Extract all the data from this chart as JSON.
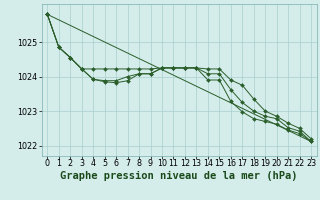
{
  "title": "Graphe pression niveau de la mer (hPa)",
  "background_color": "#d4ecea",
  "grid_color": "#a8d0ce",
  "line_color": "#2a5e2a",
  "x": [
    0,
    1,
    2,
    3,
    4,
    5,
    6,
    7,
    8,
    9,
    10,
    11,
    12,
    13,
    14,
    15,
    16,
    17,
    18,
    19,
    20,
    21,
    22,
    23
  ],
  "line_upper": [
    1025.8,
    1024.85,
    1024.55,
    1024.22,
    1024.22,
    1024.22,
    1024.22,
    1024.22,
    1024.22,
    1024.22,
    1024.25,
    1024.25,
    1024.25,
    1024.25,
    1024.22,
    1024.22,
    1023.9,
    1023.75,
    1023.35,
    1023.0,
    1022.85,
    1022.65,
    1022.5,
    1022.2
  ],
  "line_mid": [
    1025.8,
    1024.85,
    1024.55,
    1024.22,
    1023.92,
    1023.88,
    1023.88,
    1024.0,
    1024.08,
    1024.08,
    1024.25,
    1024.25,
    1024.25,
    1024.25,
    1024.08,
    1024.08,
    1023.62,
    1023.25,
    1023.0,
    1022.85,
    1022.78,
    1022.52,
    1022.42,
    1022.12
  ],
  "line_lower": [
    1025.8,
    1024.85,
    1024.55,
    1024.22,
    1023.92,
    1023.85,
    1023.82,
    1023.88,
    1024.08,
    1024.08,
    1024.25,
    1024.25,
    1024.25,
    1024.25,
    1023.9,
    1023.9,
    1023.28,
    1022.98,
    1022.78,
    1022.7,
    1022.62,
    1022.45,
    1022.35,
    1022.12
  ],
  "trend_x": [
    0,
    23
  ],
  "trend_y": [
    1025.8,
    1022.12
  ],
  "ylim": [
    1021.7,
    1026.1
  ],
  "yticks": [
    1022,
    1023,
    1024,
    1025
  ],
  "xticks": [
    0,
    1,
    2,
    3,
    4,
    5,
    6,
    7,
    8,
    9,
    10,
    11,
    12,
    13,
    14,
    15,
    16,
    17,
    18,
    19,
    20,
    21,
    22,
    23
  ],
  "title_fontsize": 7.5,
  "tick_fontsize": 5.8,
  "marker_size": 2.0
}
